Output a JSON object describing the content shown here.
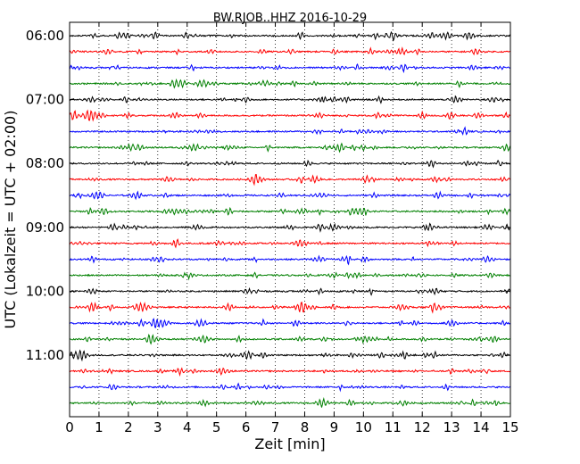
{
  "chart_data": {
    "type": "line",
    "title": "BW.RJOB..HHZ 2016-10-29",
    "xlabel": "Zeit  [min]",
    "ylabel": "UTC (Lokalzeit = UTC + 02:00)",
    "xlim": [
      0,
      15
    ],
    "x_ticks": [
      0,
      1,
      2,
      3,
      4,
      5,
      6,
      7,
      8,
      9,
      10,
      11,
      12,
      13,
      14,
      15
    ],
    "y_tick_labels": [
      "06:00",
      "07:00",
      "08:00",
      "09:00",
      "10:00",
      "11:00"
    ],
    "trace_interval_minutes": 15,
    "trace_count": 24,
    "trace_colors": [
      "#000000",
      "#ff0000",
      "#0000ff",
      "#008000"
    ],
    "vertical_grid": "dotted",
    "start_time": "06:00"
  }
}
